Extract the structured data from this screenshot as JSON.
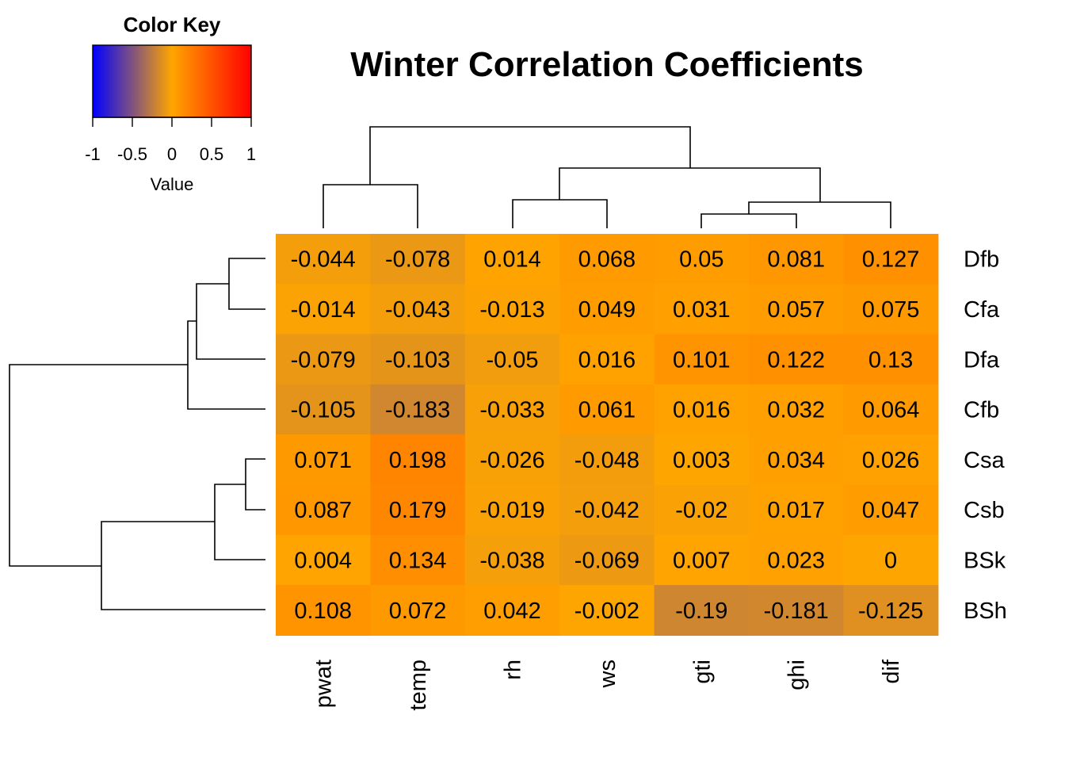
{
  "chart_data": {
    "type": "heatmap",
    "title": "Winter Correlation Coefficients",
    "columns": [
      "pwat",
      "temp",
      "rh",
      "ws",
      "gti",
      "ghi",
      "dif"
    ],
    "rows": [
      "Dfb",
      "Cfa",
      "Dfa",
      "Cfb",
      "Csa",
      "Csb",
      "BSk",
      "BSh"
    ],
    "values": [
      [
        -0.044,
        -0.078,
        0.014,
        0.068,
        0.05,
        0.081,
        0.127
      ],
      [
        -0.014,
        -0.043,
        -0.013,
        0.049,
        0.031,
        0.057,
        0.075
      ],
      [
        -0.079,
        -0.103,
        -0.05,
        0.016,
        0.101,
        0.122,
        0.13
      ],
      [
        -0.105,
        -0.183,
        -0.033,
        0.061,
        0.016,
        0.032,
        0.064
      ],
      [
        0.071,
        0.198,
        -0.026,
        -0.048,
        0.003,
        0.034,
        0.026
      ],
      [
        0.087,
        0.179,
        -0.019,
        -0.042,
        -0.02,
        0.017,
        0.047
      ],
      [
        0.004,
        0.134,
        -0.038,
        -0.069,
        0.007,
        0.023,
        0
      ],
      [
        0.108,
        0.072,
        0.042,
        -0.002,
        -0.19,
        -0.181,
        -0.125
      ]
    ],
    "value_range": [
      -1,
      1
    ],
    "colors": {
      "low": "#0000ff",
      "mid": "#ffa500",
      "high": "#ff0000"
    },
    "color_key": {
      "title": "Color Key",
      "xlabel": "Value",
      "ticks": [
        -1,
        -0.5,
        0,
        0.5,
        1
      ],
      "tick_labels": [
        "-1",
        "-0.5",
        "0",
        "0.5",
        "1"
      ]
    },
    "column_dendrogram": [
      [
        "pwat",
        "temp"
      ],
      [
        [
          "rh",
          "ws"
        ],
        [
          [
            "gti",
            "ghi"
          ],
          "dif"
        ]
      ]
    ],
    "row_dendrogram": [
      [
        [
          [
            "Dfb",
            "Cfa"
          ],
          "Dfa"
        ],
        "Cfb"
      ],
      [
        [
          [
            "Csa",
            "Csb"
          ],
          "BSk"
        ],
        "BSh"
      ]
    ]
  }
}
